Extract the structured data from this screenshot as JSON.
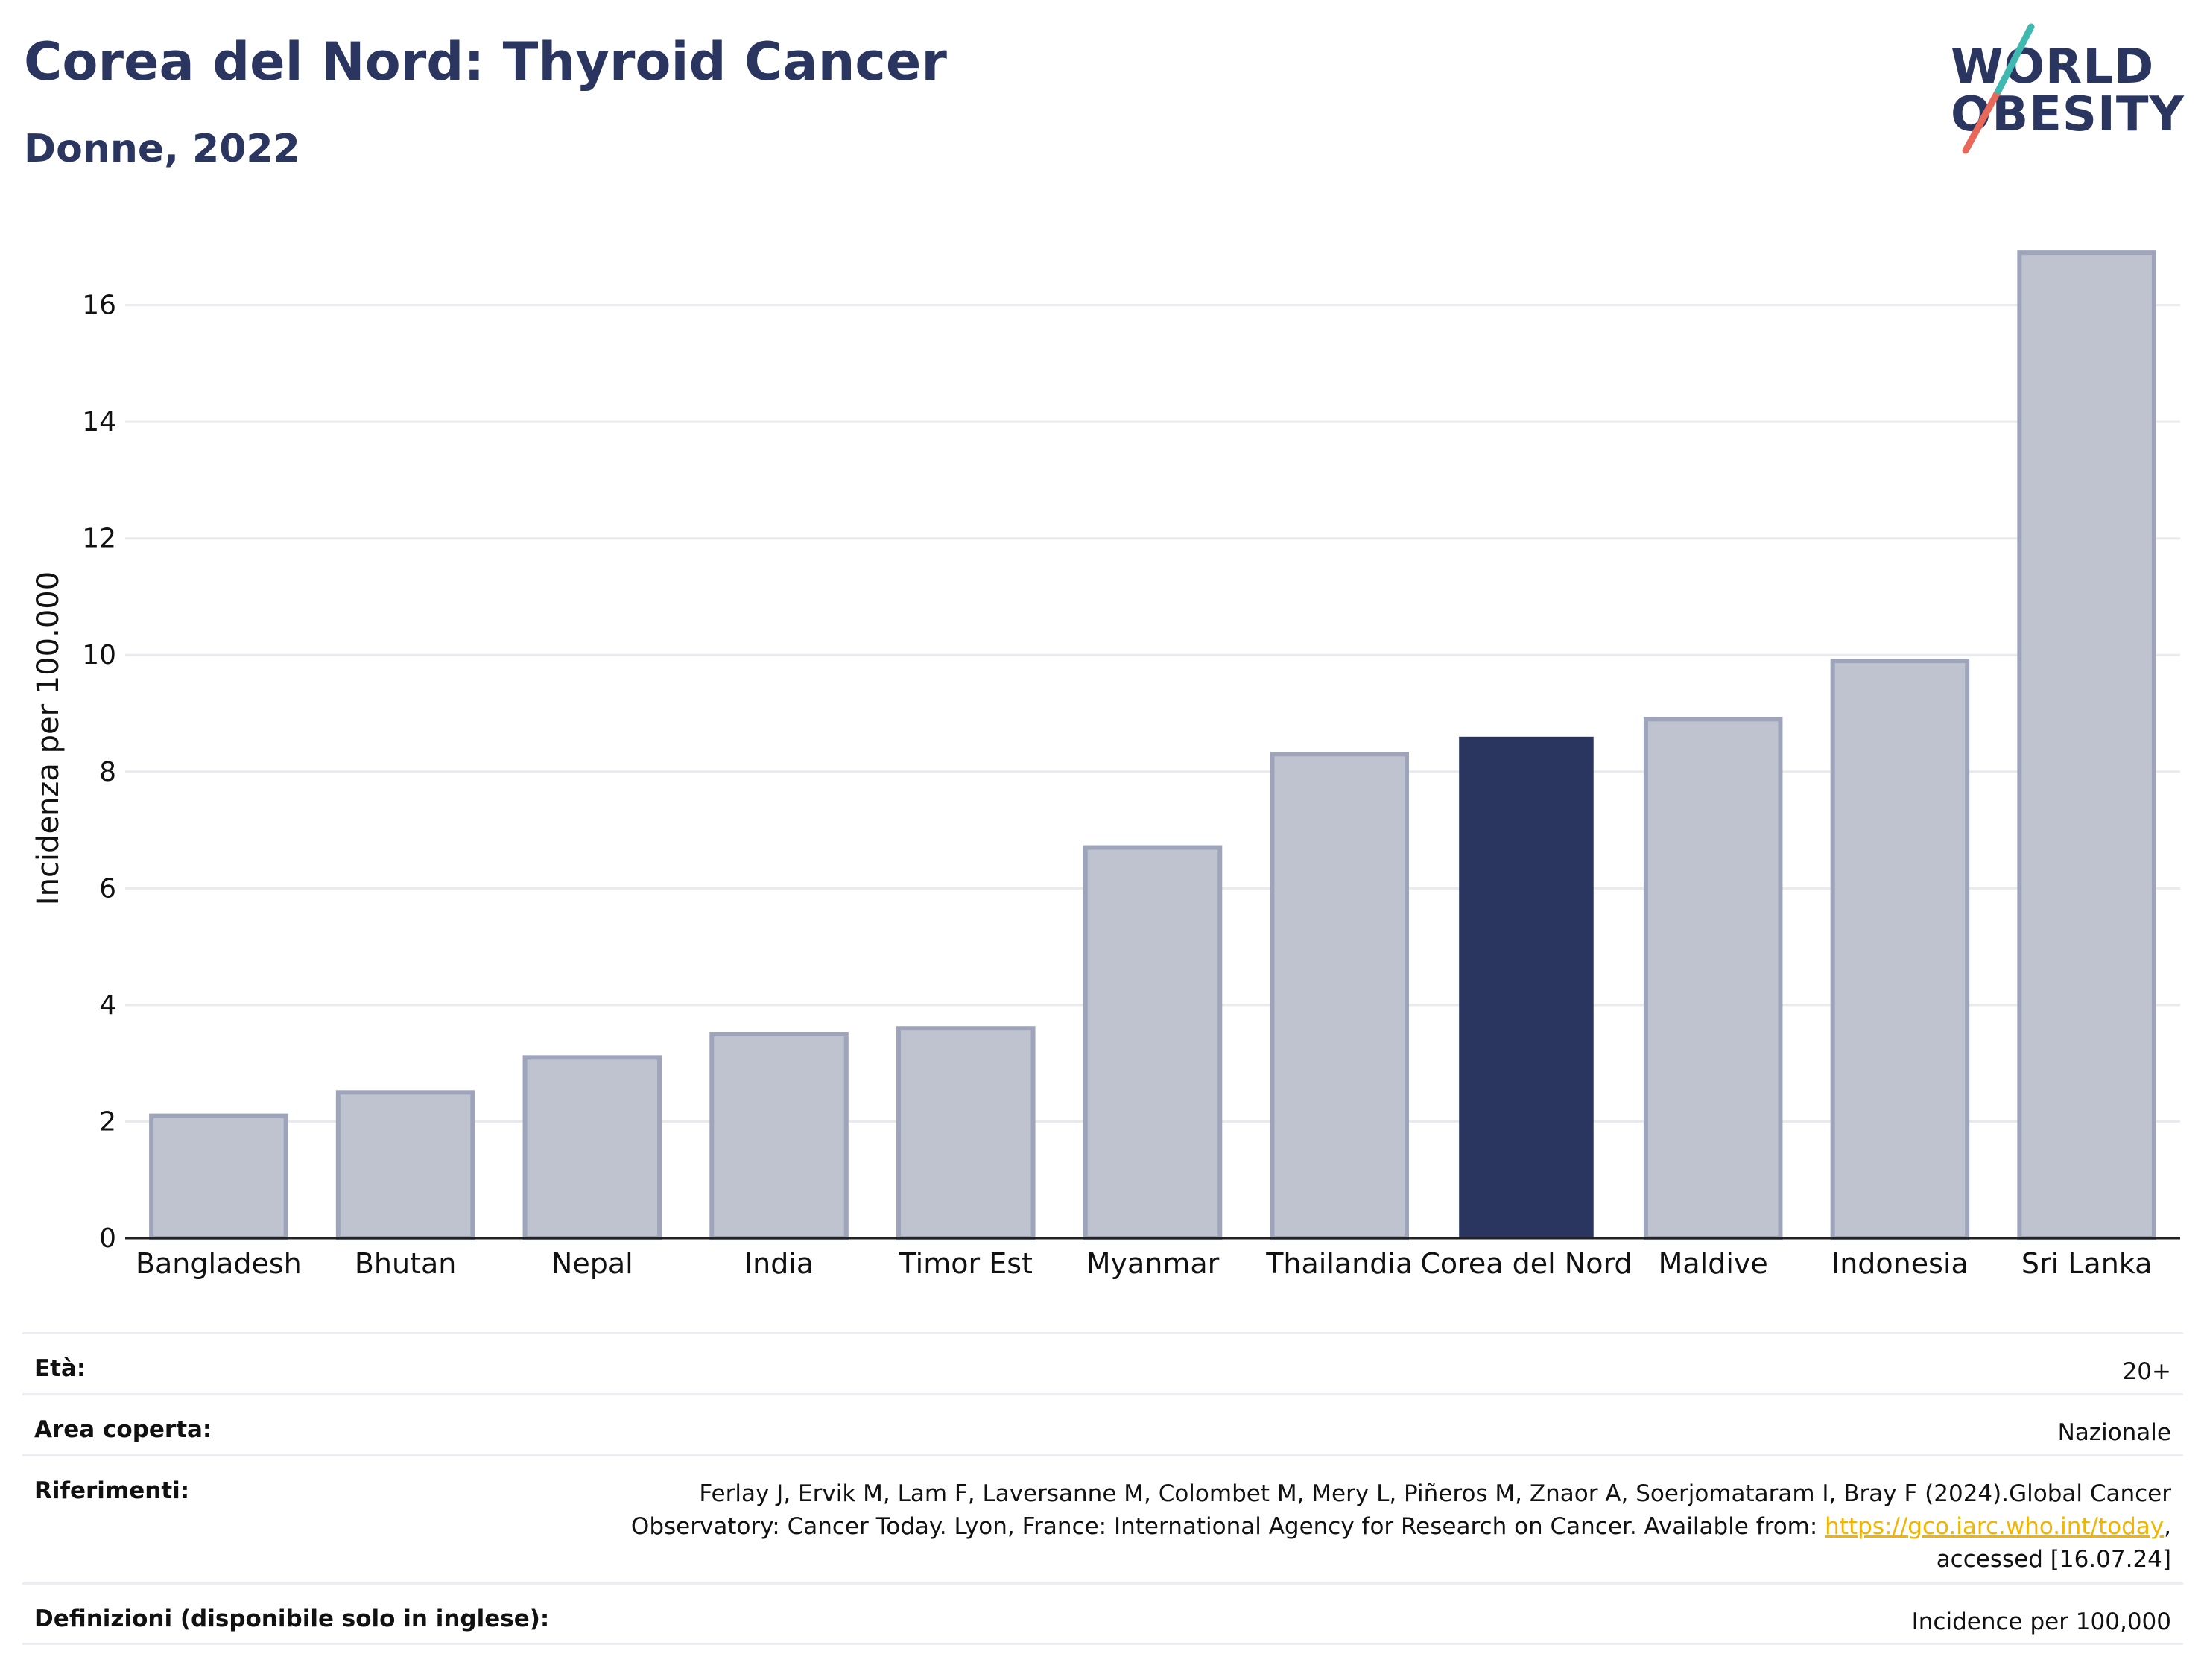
{
  "header": {
    "title": "Corea del Nord: Thyroid Cancer",
    "subtitle": "Donne, 2022"
  },
  "logo": {
    "line1": "WORLD",
    "line2": "OBESITY",
    "colors": [
      "#2a3560",
      "#e8685a",
      "#3fb8b0"
    ]
  },
  "chart_data": {
    "type": "bar",
    "categories": [
      "Bangladesh",
      "Bhutan",
      "Nepal",
      "India",
      "Timor Est",
      "Myanmar",
      "Thailandia",
      "Corea del Nord",
      "Maldive",
      "Indonesia",
      "Sri Lanka"
    ],
    "values": [
      2.1,
      2.5,
      3.1,
      3.5,
      3.6,
      6.7,
      8.3,
      8.6,
      8.9,
      9.9,
      16.9
    ],
    "highlight": "Corea del Nord",
    "ylabel": "Incidenza per 100.000",
    "xlabel": "",
    "ylim": [
      0,
      17.4
    ],
    "yticks": [
      0,
      2,
      4,
      6,
      8,
      10,
      12,
      14,
      16
    ],
    "grid": true,
    "colors": {
      "bar": "#bfc3d0",
      "bar_outline": "#9ea4ba",
      "highlight": "#2a3560"
    }
  },
  "meta": [
    {
      "label": "Età:",
      "value": "20+"
    },
    {
      "label": "Area coperta:",
      "value": "Nazionale"
    },
    {
      "label": "Riferimenti:",
      "value_line1": "Ferlay J, Ervik M, Lam F, Laversanne M, Colombet M, Mery L, Piñeros M, Znaor A, Soerjomataram I, Bray F (2024).Global Cancer",
      "value_line2_pre": "Observatory: Cancer Today. Lyon, France: International Agency for Research on Cancer. Available from: ",
      "value_link": "https://gco.iarc.who.int/today",
      "value_line2_post": ",",
      "value_line3": "accessed [16.07.24]"
    },
    {
      "label": "Definizioni (disponibile solo in inglese):",
      "value": "Incidence per 100,000"
    }
  ]
}
